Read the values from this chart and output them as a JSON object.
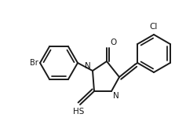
{
  "bg_color": "#ffffff",
  "line_color": "#1a1a1a",
  "line_width": 1.4,
  "figsize": [
    2.37,
    1.59
  ],
  "dpi": 100,
  "xlim": [
    0,
    237
  ],
  "ylim": [
    0,
    159
  ]
}
